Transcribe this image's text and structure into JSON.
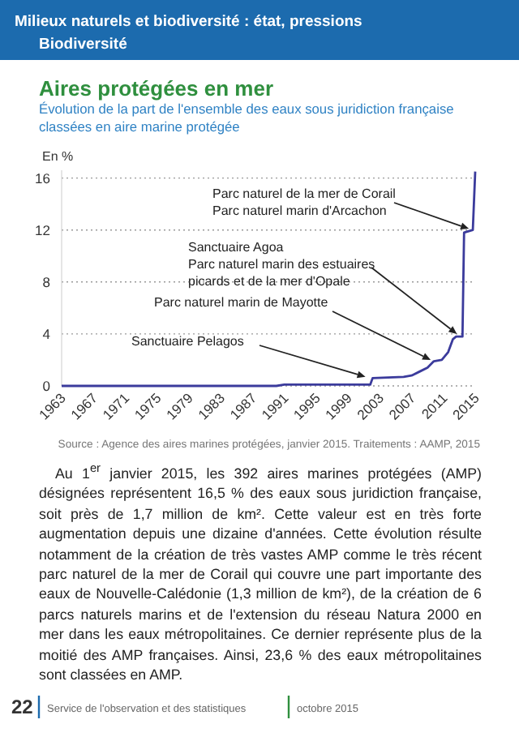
{
  "chart_data": {
    "type": "line",
    "title": "Aires protégées en mer",
    "subtitle": "Évolution de la part de l'ensemble des eaux sous juridiction française classées en aire marine protégée",
    "ylabel": "En %",
    "x": [
      1963,
      1990,
      1991,
      2001.8,
      2002.1,
      2006,
      2007,
      2008,
      2009,
      2009.8,
      2010.8,
      2011.6,
      2012.2,
      2012.6,
      2013.4,
      2013.6,
      2014.7,
      2015
    ],
    "series": [
      {
        "color": "#3b3b9c",
        "values": [
          0,
          0,
          0.1,
          0.1,
          0.6,
          0.7,
          0.8,
          1.1,
          1.4,
          1.9,
          2.0,
          2.6,
          3.6,
          3.8,
          3.8,
          11.8,
          12.0,
          16.5
        ]
      }
    ],
    "xlim": [
      1963,
      2015
    ],
    "xticks": [
      1963,
      1967,
      1971,
      1975,
      1979,
      1983,
      1987,
      1991,
      1995,
      1999,
      2003,
      2007,
      2011,
      2015
    ],
    "ylim": [
      0,
      16.6
    ],
    "yticks": [
      0,
      4,
      8,
      12,
      16
    ],
    "grid": "y",
    "marker": "none",
    "line_style": "solid",
    "annotations": [
      {
        "text": "Parc naturel de la mer de Corail\nParc naturel marin d'Arcachon",
        "x": 2014.2,
        "y": 12.1
      },
      {
        "text": "Sanctuaire Agoa\nParc naturel marin des estuaires\npicards et de la mer d'Opale",
        "x": 2012.7,
        "y": 4
      },
      {
        "text": "Parc naturel marin de Mayotte",
        "x": 2009.4,
        "y": 2
      },
      {
        "text": "Sanctuaire Pelagos",
        "x": 2001.2,
        "y": 0.7
      },
      "Milieux naturels et biodiversité : état, pressions",
      "Biodiversité",
      "Source : Agence des aires marines protégées, janvier 2015. Traitements : AAMP, 2015",
      "Au 1$^{er}$ janvier 2015, les 392 aires marines protégées (AMP) désignées représentent 16,5 % des eaux sous juridiction française, soit près de 1,7 million de km². Cette valeur est en très forte augmentation depuis une dizaine d'années. Cette évolution résulte notamment de la création de très vastes AMP comme le très récent parc naturel de la mer de Corail qui couvre une part importante des eaux de Nouvelle-Calédonie (1,3 million de km²), de la création de 6 parcs naturels marins et de l'extension du réseau Natura 2000 en mer dans les eaux métropolitaines. Ce dernier représente plus de la moitié des AMP françaises. Ainsi, 23,6 % des eaux métropolitaines sont classées en AMP.",
      "22",
      "Service de l'observation et des statistiques",
      "octobre 2015"
    ]
  }
}
